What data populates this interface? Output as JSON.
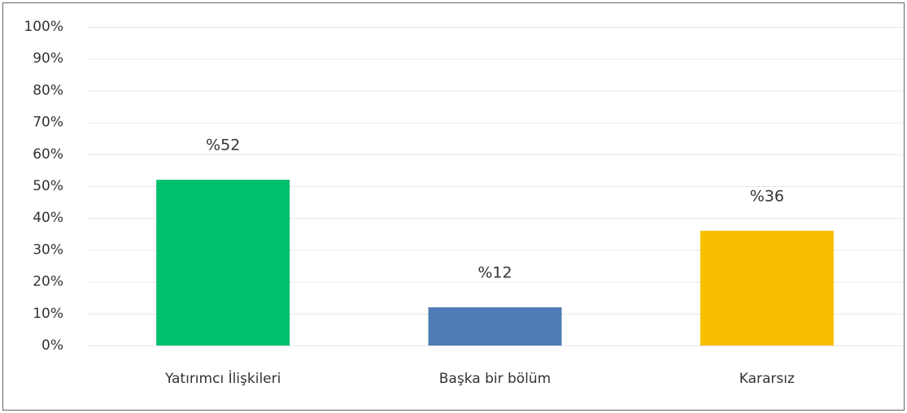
{
  "chart_data": {
    "type": "bar",
    "categories": [
      "Yatırımcı İlişkileri",
      "Başka bir bölüm",
      "Kararsız"
    ],
    "values": [
      52,
      12,
      36
    ],
    "value_labels": [
      "%52",
      "%12",
      "%36"
    ],
    "colors": [
      "#00bf6f",
      "#507cb6",
      "#f9be00"
    ],
    "ylim": [
      0,
      100
    ],
    "yticks": [
      {
        "value": 0,
        "label": "0%"
      },
      {
        "value": 10,
        "label": "10%"
      },
      {
        "value": 20,
        "label": "20%"
      },
      {
        "value": 30,
        "label": "30%"
      },
      {
        "value": 40,
        "label": "40%"
      },
      {
        "value": 50,
        "label": "50%"
      },
      {
        "value": 60,
        "label": "60%"
      },
      {
        "value": 70,
        "label": "70%"
      },
      {
        "value": 80,
        "label": "80%"
      },
      {
        "value": 90,
        "label": "90%"
      },
      {
        "value": 100,
        "label": "100%"
      }
    ],
    "grid": true
  }
}
